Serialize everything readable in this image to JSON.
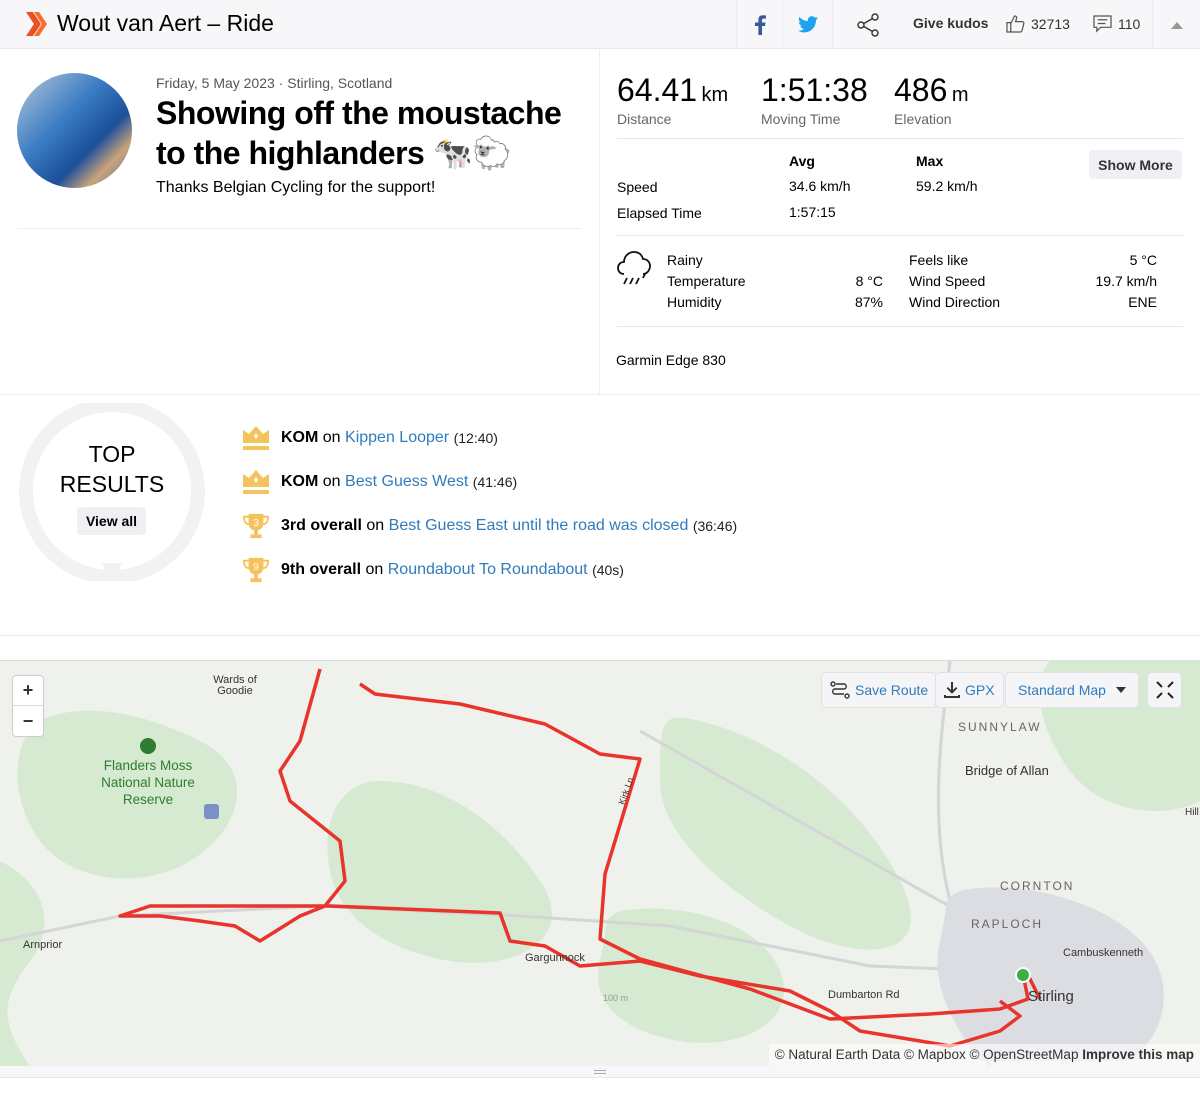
{
  "header": {
    "title": "Wout van Aert – Ride",
    "give_kudos": "Give kudos",
    "kudos_count": "32713",
    "comment_count": "110",
    "brand_color": "#fc5200"
  },
  "activity": {
    "date_location": "Friday, 5 May 2023 · Stirling, Scotland",
    "title": "Showing off the moustache to the highlanders 🐄🐑",
    "description": "Thanks Belgian Cycling for the support!"
  },
  "stats": {
    "primary": [
      {
        "value": "64.41",
        "unit": "km",
        "label": "Distance"
      },
      {
        "value": "1:51:38",
        "unit": "",
        "label": "Moving Time"
      },
      {
        "value": "486",
        "unit": "m",
        "label": "Elevation"
      }
    ],
    "avg_label": "Avg",
    "max_label": "Max",
    "show_more": "Show More",
    "speed": {
      "label": "Speed",
      "avg": "34.6 km/h",
      "max": "59.2 km/h"
    },
    "elapsed": {
      "label": "Elapsed Time",
      "avg": "1:57:15"
    }
  },
  "weather": {
    "condition": "Rainy",
    "temperature_label": "Temperature",
    "temperature": "8 °C",
    "humidity_label": "Humidity",
    "humidity": "87%",
    "feels_like_label": "Feels like",
    "feels_like": "5 °C",
    "wind_speed_label": "Wind Speed",
    "wind_speed": "19.7 km/h",
    "wind_direction_label": "Wind Direction",
    "wind_direction": "ENE"
  },
  "device": "Garmin Edge 830",
  "top_results": {
    "title_line1": "TOP",
    "title_line2": "RESULTS",
    "view_all": "View all",
    "items": [
      {
        "rank": "KOM",
        "icon": "crown",
        "on": "on",
        "segment": "Kippen Looper",
        "time": "(12:40)"
      },
      {
        "rank": "KOM",
        "icon": "crown",
        "on": "on",
        "segment": "Best Guess West",
        "time": "(41:46)"
      },
      {
        "rank": "3rd overall",
        "icon": "trophy",
        "badge": "3",
        "on": "on",
        "segment": "Best Guess East until the road was closed",
        "time": "(36:46)"
      },
      {
        "rank": "9th overall",
        "icon": "trophy",
        "badge": "9",
        "on": "on",
        "segment": "Roundabout To Roundabout",
        "time": "(40s)"
      }
    ]
  },
  "map": {
    "save_route": "Save Route",
    "gpx": "GPX",
    "map_type": "Standard Map",
    "zoom_in": "+",
    "zoom_out": "−",
    "labels": {
      "wards": "Wards of Goodie",
      "flanders": "Flanders Moss National Nature Reserve",
      "arnprior": "Arnprior",
      "gargunnock": "Gargunnock",
      "sunnylaw": "SUNNYLAW",
      "bridge": "Bridge of Allan",
      "cornton": "CORNTON",
      "raploch": "RAPLOCH",
      "cambus": "Cambuskenneth",
      "stirling": "Stirling",
      "dumbarton": "Dumbarton Rd",
      "kirk": "Kirk Ln",
      "contour": "100 m",
      "hill": "Hill"
    },
    "attribution": "© Natural Earth Data © Mapbox © OpenStreetMap",
    "improve": "Improve this map",
    "route_color": "#e8342b"
  }
}
